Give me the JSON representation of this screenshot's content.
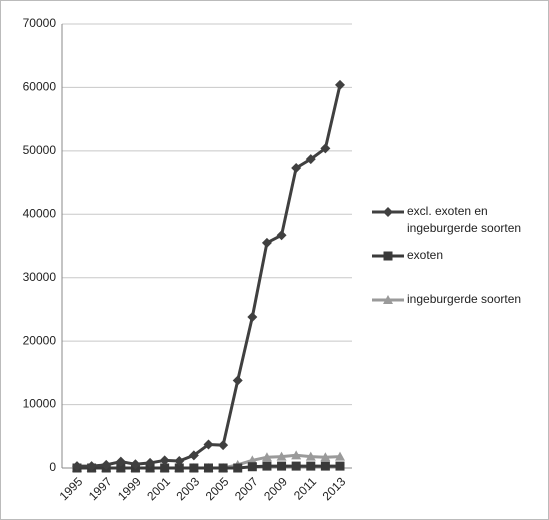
{
  "chart_data": {
    "type": "line",
    "categories": [
      "1995",
      null,
      "1997",
      null,
      "1999",
      null,
      "2001",
      null,
      "2003",
      null,
      "2005",
      null,
      "2007",
      null,
      "2009",
      null,
      "2011",
      null,
      "2013"
    ],
    "series": [
      {
        "name": "excl. exoten en ingeburgerde soorten",
        "color": "#404040",
        "marker": "diamond",
        "values": [
          300,
          300,
          500,
          1000,
          600,
          800,
          1200,
          1100,
          2000,
          3700,
          3600,
          13800,
          23800,
          35500,
          36700,
          47300,
          48700,
          50400,
          60400
        ]
      },
      {
        "name": "exoten",
        "color": "#3a3a3a",
        "marker": "square",
        "values": [
          0,
          0,
          0,
          0,
          0,
          0,
          0,
          0,
          0,
          0,
          0,
          0,
          200,
          300,
          300,
          300,
          300,
          300,
          300
        ]
      },
      {
        "name": "ingeburgerde soorten",
        "color": "#9a9a9a",
        "marker": "triangle",
        "values": [
          0,
          0,
          0,
          0,
          0,
          0,
          0,
          0,
          0,
          0,
          0,
          500,
          1200,
          1700,
          1800,
          2000,
          1800,
          1700,
          1800
        ]
      }
    ],
    "ylim": [
      0,
      70000
    ],
    "yticks": [
      0,
      10000,
      20000,
      30000,
      40000,
      50000,
      60000,
      70000
    ],
    "grid": true,
    "legend": "right"
  }
}
